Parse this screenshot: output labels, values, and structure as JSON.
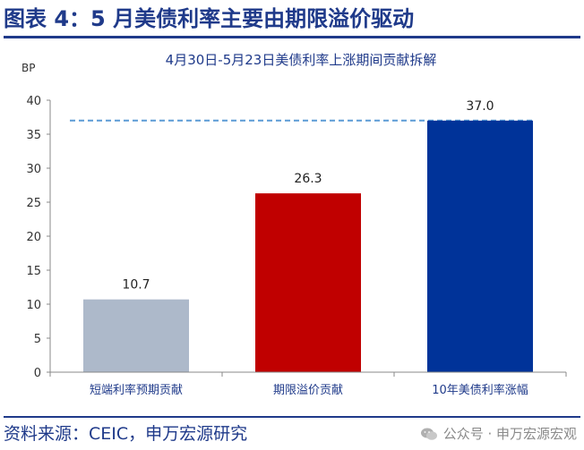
{
  "figure": {
    "title": "图表 4：5 月美债利率主要由期限溢价驱动",
    "source": "资料来源：CEIC，申万宏源研究",
    "watermark": "公众号 · 申万宏源宏观",
    "watermark_icon": "wechat-icon"
  },
  "chart_data": {
    "type": "bar",
    "title": "4月30日-5月23日美债利率上涨期间贡献拆解",
    "xlabel": "",
    "ylabel": "BP",
    "ylim": [
      0,
      40
    ],
    "yticks": [
      0,
      5,
      10,
      15,
      20,
      25,
      30,
      35,
      40
    ],
    "categories": [
      "短端利率预期贡献",
      "期限溢价贡献",
      "10年美债利率涨幅"
    ],
    "values": [
      10.7,
      26.3,
      37.0
    ],
    "value_labels": [
      "10.7",
      "26.3",
      "37.0"
    ],
    "colors": [
      "#adb9ca",
      "#c00000",
      "#003399"
    ],
    "reference_line": {
      "value": 37.0,
      "style": "dashed",
      "color": "#5b9bd5"
    },
    "grid": false,
    "legend": "none"
  }
}
